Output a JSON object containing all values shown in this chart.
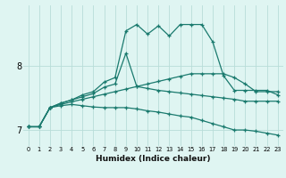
{
  "title": "",
  "xlabel": "Humidex (Indice chaleur)",
  "background_color": "#dff5f2",
  "grid_color": "#b8ddd8",
  "line_color": "#1a7a6e",
  "xlim": [
    -0.5,
    23.5
  ],
  "ylim": [
    6.75,
    8.95
  ],
  "yticks": [
    7,
    8
  ],
  "xticks": [
    0,
    1,
    2,
    3,
    4,
    5,
    6,
    7,
    8,
    9,
    10,
    11,
    12,
    13,
    14,
    15,
    16,
    17,
    18,
    19,
    20,
    21,
    22,
    23
  ],
  "series": [
    {
      "x": [
        0,
        1,
        2,
        3,
        4,
        5,
        6,
        7,
        8,
        9,
        10,
        11,
        12,
        13,
        14,
        15,
        16,
        17,
        18,
        19,
        20,
        21,
        22,
        23
      ],
      "y": [
        7.05,
        7.05,
        7.35,
        7.42,
        7.47,
        7.55,
        7.6,
        7.75,
        7.82,
        8.55,
        8.65,
        8.5,
        8.63,
        8.47,
        8.65,
        8.65,
        8.65,
        8.38,
        7.85,
        7.62,
        7.62,
        7.62,
        7.62,
        7.55
      ]
    },
    {
      "x": [
        0,
        1,
        2,
        3,
        4,
        5,
        6,
        7,
        8,
        9,
        10,
        11,
        12,
        13,
        14,
        15,
        16,
        17,
        18,
        19,
        20,
        21,
        22,
        23
      ],
      "y": [
        7.05,
        7.05,
        7.35,
        7.42,
        7.47,
        7.52,
        7.57,
        7.67,
        7.72,
        8.2,
        7.68,
        7.65,
        7.62,
        7.6,
        7.58,
        7.56,
        7.54,
        7.52,
        7.5,
        7.48,
        7.45,
        7.45,
        7.45,
        7.45
      ]
    },
    {
      "x": [
        0,
        1,
        2,
        3,
        4,
        5,
        6,
        7,
        8,
        9,
        10,
        11,
        12,
        13,
        14,
        15,
        16,
        17,
        18,
        19,
        20,
        21,
        22,
        23
      ],
      "y": [
        7.05,
        7.05,
        7.35,
        7.4,
        7.44,
        7.48,
        7.52,
        7.56,
        7.6,
        7.64,
        7.68,
        7.72,
        7.76,
        7.8,
        7.84,
        7.88,
        7.88,
        7.88,
        7.88,
        7.82,
        7.72,
        7.6,
        7.6,
        7.6
      ]
    },
    {
      "x": [
        0,
        1,
        2,
        3,
        4,
        5,
        6,
        7,
        8,
        9,
        10,
        11,
        12,
        13,
        14,
        15,
        16,
        17,
        18,
        19,
        20,
        21,
        22,
        23
      ],
      "y": [
        7.05,
        7.05,
        7.35,
        7.38,
        7.4,
        7.38,
        7.36,
        7.35,
        7.35,
        7.35,
        7.33,
        7.3,
        7.28,
        7.25,
        7.22,
        7.2,
        7.15,
        7.1,
        7.05,
        7.0,
        7.0,
        6.98,
        6.95,
        6.92
      ]
    }
  ]
}
